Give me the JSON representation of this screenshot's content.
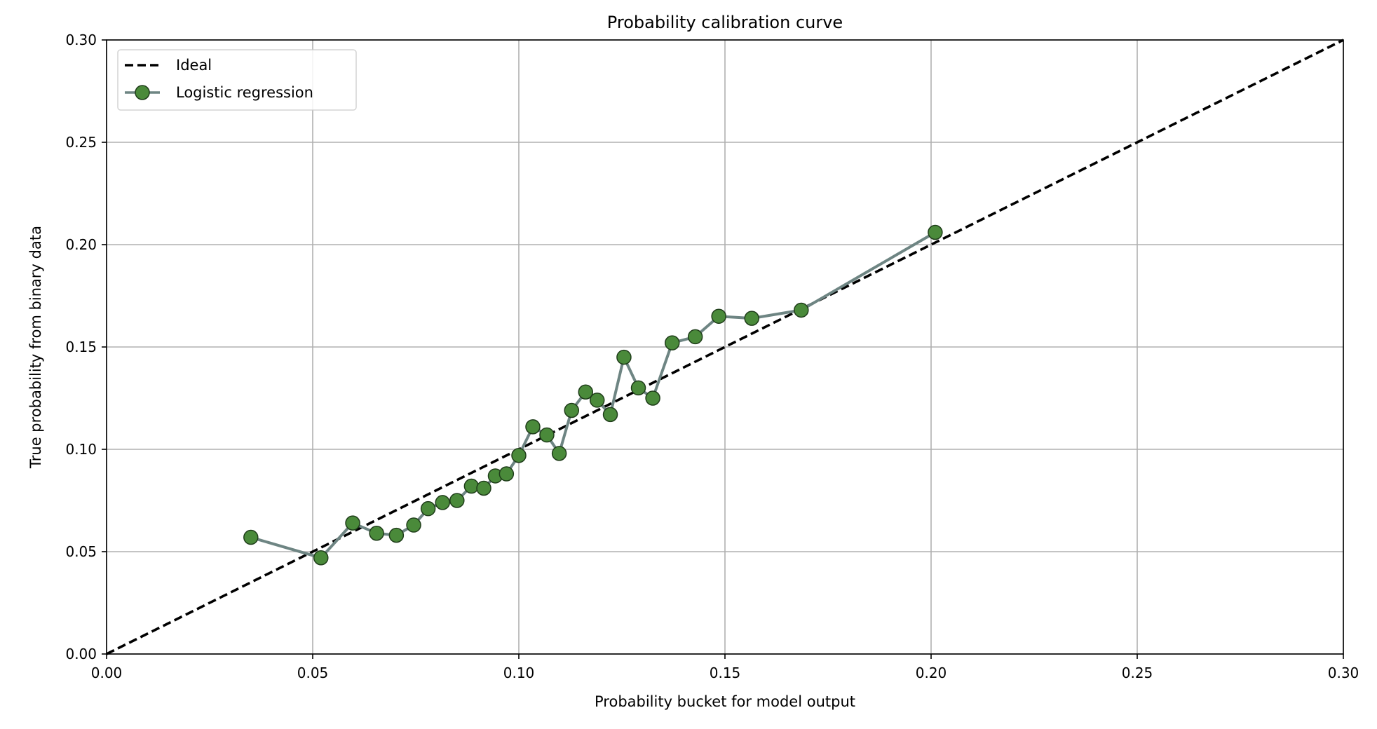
{
  "chart_data": {
    "type": "line",
    "title": "Probability calibration curve",
    "xlabel": "Probability bucket for model output",
    "ylabel": "True probability from binary data",
    "xlim": [
      0.0,
      0.3
    ],
    "ylim": [
      0.0,
      0.3
    ],
    "xticks": [
      "0.00",
      "0.05",
      "0.10",
      "0.15",
      "0.20",
      "0.25",
      "0.30"
    ],
    "yticks": [
      "0.00",
      "0.05",
      "0.10",
      "0.15",
      "0.20",
      "0.25",
      "0.30"
    ],
    "grid": true,
    "legend_position": "top-left",
    "series": [
      {
        "name": "Ideal",
        "style": "dashed",
        "color": "#000000",
        "x": [
          0.0,
          0.3
        ],
        "y": [
          0.0,
          0.3
        ]
      },
      {
        "name": "Logistic regression",
        "style": "line-markers",
        "line_color": "#6e8583",
        "marker_color": "#4a8a3a",
        "x": [
          0.035,
          0.052,
          0.0597,
          0.0655,
          0.0703,
          0.0745,
          0.078,
          0.0815,
          0.085,
          0.0885,
          0.0915,
          0.0943,
          0.097,
          0.1,
          0.1034,
          0.1068,
          0.1098,
          0.1128,
          0.1162,
          0.119,
          0.1222,
          0.1255,
          0.129,
          0.1325,
          0.1372,
          0.1428,
          0.1485,
          0.1565,
          0.1685,
          0.201
        ],
        "y": [
          0.057,
          0.047,
          0.064,
          0.059,
          0.058,
          0.063,
          0.071,
          0.074,
          0.075,
          0.082,
          0.081,
          0.087,
          0.088,
          0.097,
          0.111,
          0.107,
          0.098,
          0.119,
          0.128,
          0.124,
          0.117,
          0.145,
          0.13,
          0.125,
          0.152,
          0.155,
          0.165,
          0.164,
          0.168,
          0.206
        ]
      }
    ]
  }
}
